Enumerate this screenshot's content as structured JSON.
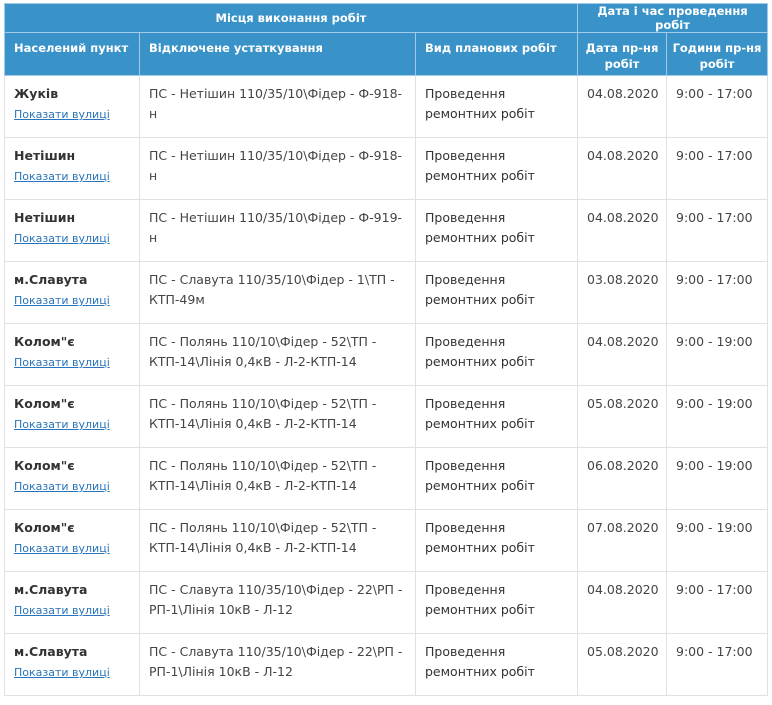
{
  "header": {
    "group_location": "Місця виконання робіт",
    "group_datetime": "Дата і час проведення робіт",
    "col_place": "Населений пункт",
    "col_equipment": "Відключене устаткування",
    "col_work_type": "Вид планових робіт",
    "col_date": "Дата пр-ня робіт",
    "col_hours": "Години пр-ня робіт"
  },
  "rows": [
    {
      "place": "Жуків",
      "link": "Показати вулиці",
      "equipment": "ПС - Нетішин 110/35/10\\Фідер - Ф-918-н",
      "work": "Проведення ремонтних робіт",
      "date": "04.08.2020",
      "hours": "9:00 - 17:00"
    },
    {
      "place": "Нетішин",
      "link": "Показати вулиці",
      "equipment": "ПС - Нетішин 110/35/10\\Фідер - Ф-918-н",
      "work": "Проведення ремонтних робіт",
      "date": "04.08.2020",
      "hours": "9:00 - 17:00"
    },
    {
      "place": "Нетішин",
      "link": "Показати вулиці",
      "equipment": "ПС - Нетішин 110/35/10\\Фідер - Ф-919-н",
      "work": "Проведення ремонтних робіт",
      "date": "04.08.2020",
      "hours": "9:00 - 17:00"
    },
    {
      "place": "м.Славута",
      "link": "Показати вулиці",
      "equipment": "ПС - Славута 110/35/10\\Фідер - 1\\ТП - КТП-49м",
      "work": "Проведення ремонтних робіт",
      "date": "03.08.2020",
      "hours": "9:00 - 17:00"
    },
    {
      "place": "Колом\"є",
      "link": "Показати вулиці",
      "equipment": "ПС - Полянь 110/10\\Фідер - 52\\ТП - КТП-14\\Лінія 0,4кВ - Л-2-КТП-14",
      "work": "Проведення ремонтних робіт",
      "date": "04.08.2020",
      "hours": "9:00 - 19:00"
    },
    {
      "place": "Колом\"є",
      "link": "Показати вулиці",
      "equipment": "ПС - Полянь 110/10\\Фідер - 52\\ТП - КТП-14\\Лінія 0,4кВ - Л-2-КТП-14",
      "work": "Проведення ремонтних робіт",
      "date": "05.08.2020",
      "hours": "9:00 - 19:00"
    },
    {
      "place": "Колом\"є",
      "link": "Показати вулиці",
      "equipment": "ПС - Полянь 110/10\\Фідер - 52\\ТП - КТП-14\\Лінія 0,4кВ - Л-2-КТП-14",
      "work": "Проведення ремонтних робіт",
      "date": "06.08.2020",
      "hours": "9:00 - 19:00"
    },
    {
      "place": "Колом\"є",
      "link": "Показати вулиці",
      "equipment": "ПС - Полянь 110/10\\Фідер - 52\\ТП - КТП-14\\Лінія 0,4кВ - Л-2-КТП-14",
      "work": "Проведення ремонтних робіт",
      "date": "07.08.2020",
      "hours": "9:00 - 19:00"
    },
    {
      "place": "м.Славута",
      "link": "Показати вулиці",
      "equipment": "ПС - Славута 110/35/10\\Фідер - 22\\РП - РП-1\\Лінія 10кВ - Л-12",
      "work": "Проведення ремонтних робіт",
      "date": "04.08.2020",
      "hours": "9:00 - 17:00"
    },
    {
      "place": "м.Славута",
      "link": "Показати вулиці",
      "equipment": "ПС - Славута 110/35/10\\Фідер - 22\\РП - РП-1\\Лінія 10кВ - Л-12",
      "work": "Проведення ремонтних робіт",
      "date": "05.08.2020",
      "hours": "9:00 - 17:00"
    }
  ]
}
